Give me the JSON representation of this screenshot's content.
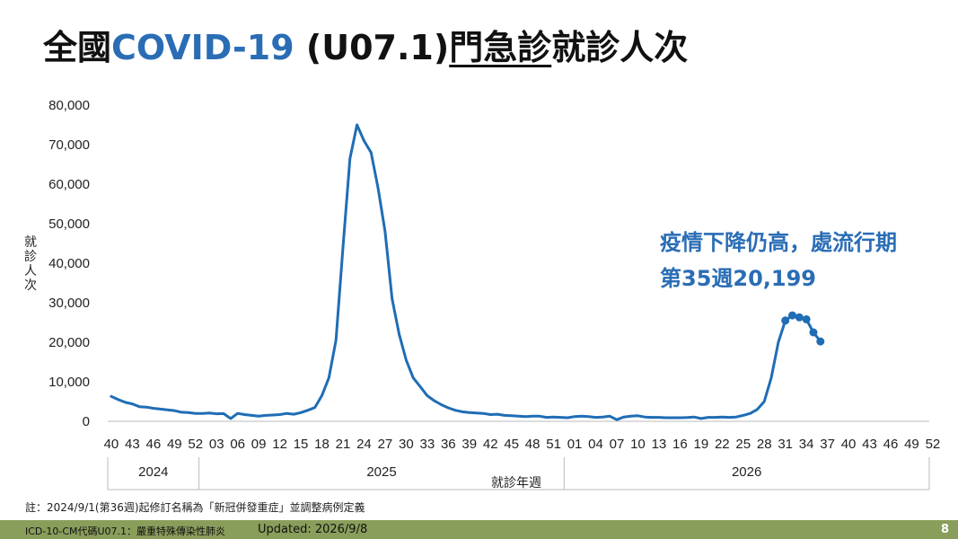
{
  "title": {
    "prefix": "全國",
    "accent": "COVID-19",
    "code": " (U07.1)",
    "underlined": "門急診",
    "suffix": "就診人次"
  },
  "annotation": {
    "line1": "疫情下降仍高，處流行期",
    "line2": "第35週20,199"
  },
  "note": "註：2024/9/1(第36週)起修訂名稱為「新冠併發重症」並調整病例定義",
  "footer": {
    "icd": "ICD-10-CM代碼U07.1：嚴重特殊傳染性肺炎",
    "updated": "Updated: 2026/9/8",
    "page": "8"
  },
  "colors": {
    "accent": "#2a6db5",
    "line": "#1f6db5",
    "footer": "#8a9e5b"
  },
  "chart_data": {
    "type": "line",
    "ylabel": "就診人次",
    "xlabel": "就診年週",
    "ylim": [
      0,
      80000
    ],
    "y_ticks": [
      "0",
      "10,000",
      "20,000",
      "30,000",
      "40,000",
      "50,000",
      "60,000",
      "70,000",
      "80,000"
    ],
    "x_tick_labels": [
      "40",
      "43",
      "46",
      "49",
      "52",
      "03",
      "06",
      "09",
      "12",
      "15",
      "18",
      "21",
      "24",
      "27",
      "30",
      "33",
      "36",
      "39",
      "42",
      "45",
      "48",
      "51",
      "01",
      "04",
      "07",
      "10",
      "13",
      "16",
      "19",
      "22",
      "25",
      "28",
      "31",
      "34",
      "37",
      "40",
      "43",
      "46",
      "49",
      "52"
    ],
    "year_groups": [
      {
        "label": "2024",
        "weeks": 13
      },
      {
        "label": "2025",
        "weeks": 52
      },
      {
        "label": "2026",
        "weeks": 52
      }
    ],
    "start_week": "2024-W40",
    "series": [
      {
        "values": [
          6300,
          5500,
          4800,
          4400,
          3700,
          3600,
          3300,
          3100,
          2900,
          2700,
          2300,
          2200,
          2000,
          2000,
          2100,
          1900,
          1950,
          700,
          2000,
          1700,
          1500,
          1300,
          1500,
          1600,
          1700,
          2000,
          1800,
          2200,
          2800,
          3500,
          6500,
          11000,
          20500,
          44000,
          66500,
          75000,
          71000,
          68000,
          59000,
          48000,
          31000,
          22000,
          15500,
          11000,
          8800,
          6500,
          5200,
          4200,
          3400,
          2800,
          2400,
          2200,
          2100,
          2000,
          1700,
          1800,
          1500,
          1400,
          1300,
          1200,
          1300,
          1300,
          1000,
          1100,
          1000,
          900,
          1200,
          1300,
          1200,
          1000,
          1100,
          1300,
          400,
          1100,
          1300,
          1400,
          1100,
          1000,
          1000,
          900,
          900,
          900,
          950,
          1100,
          700,
          1000,
          1000,
          1100,
          1000,
          1100,
          1500,
          2000,
          3000,
          5000,
          11000,
          20000,
          25500,
          26800,
          26300,
          25800,
          22500,
          20199
        ],
        "highlight_from": 96
      }
    ]
  }
}
